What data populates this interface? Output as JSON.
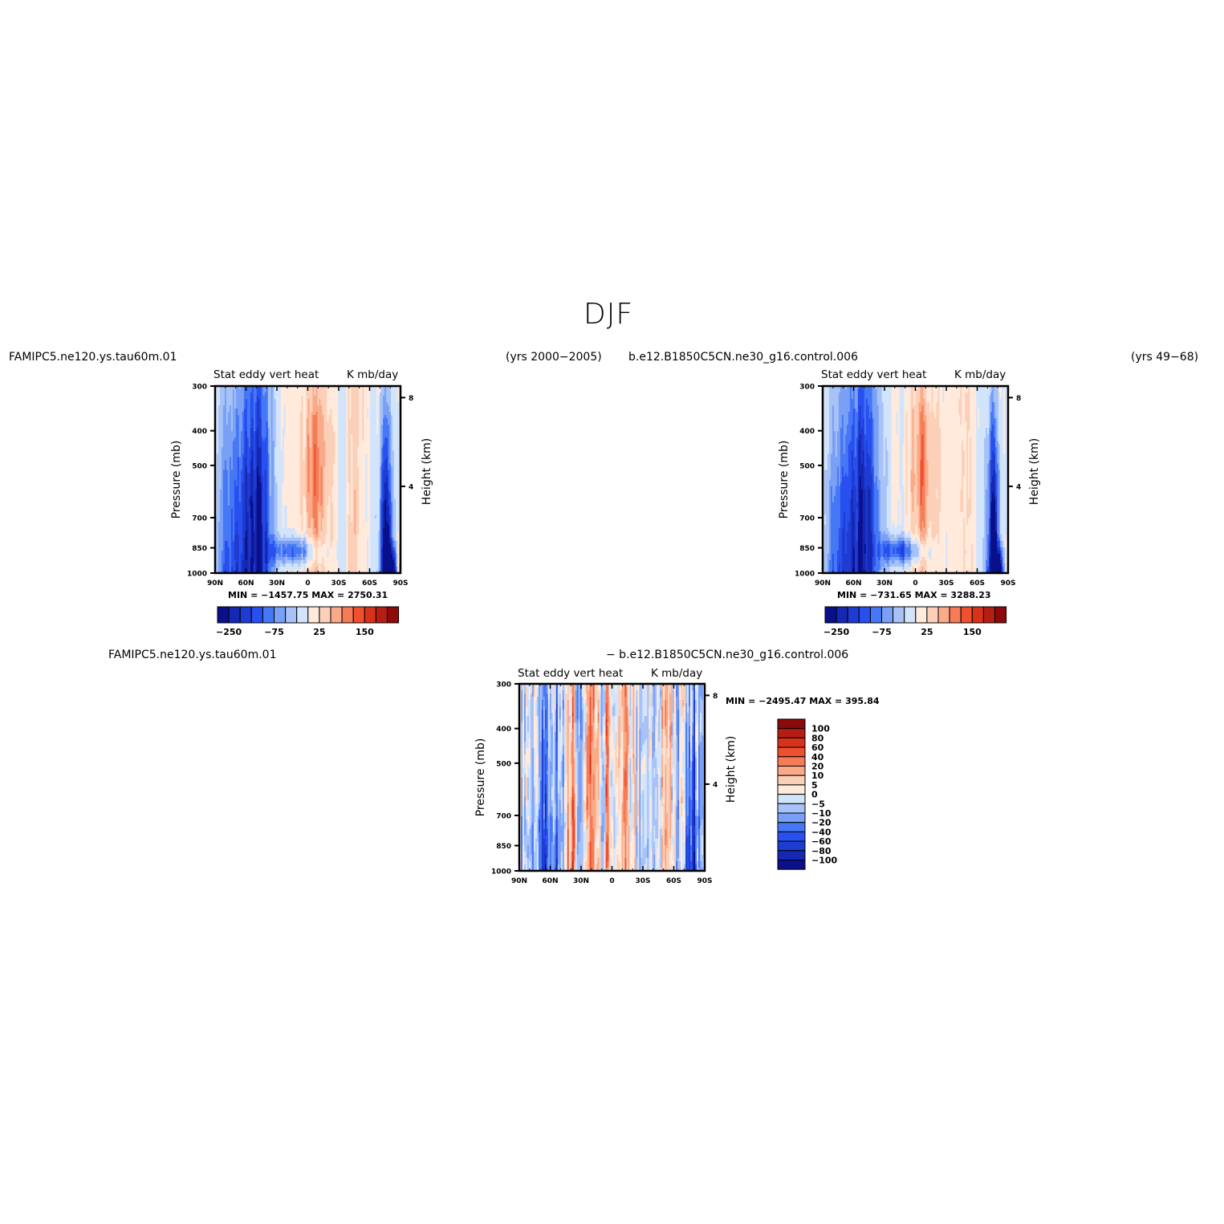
{
  "figure": {
    "title": "DJF",
    "top_left": {
      "case": "FAMIPC5.ne120.ys.tau60m.01",
      "years": "(yrs 2000−2005)"
    },
    "top_right": {
      "case": "b.e12.B1850C5CN.ne30_g16.control.006",
      "years": "(yrs 49−68)"
    },
    "bottom": {
      "case_a": "FAMIPC5.ne120.ys.tau60m.01",
      "case_b": "− b.e12.B1850C5CN.ne30_g16.control.006"
    }
  },
  "chart_data": [
    {
      "type": "heatmap",
      "panel": "top-left",
      "title_left": "Stat eddy vert heat",
      "title_right": "K mb/day",
      "ylabel": "Pressure (mb)",
      "ylabel_right": "Height (km)",
      "x_ticks": [
        "90N",
        "60N",
        "30N",
        "0",
        "30S",
        "60S",
        "90S"
      ],
      "y_ticks": [
        "300",
        "400",
        "500",
        "700",
        "850",
        "1000"
      ],
      "y_ticks_right": [
        "8",
        "4"
      ],
      "ylim": [
        1000,
        300
      ],
      "stats": "MIN = −1457.75   MAX = 2750.31",
      "colorbar_labels": [
        "−250",
        "−75",
        "25",
        "150"
      ]
    },
    {
      "type": "heatmap",
      "panel": "top-right",
      "title_left": "Stat eddy vert heat",
      "title_right": "K mb/day",
      "ylabel": "Pressure (mb)",
      "ylabel_right": "Height (km)",
      "x_ticks": [
        "90N",
        "60N",
        "30N",
        "0",
        "30S",
        "60S",
        "90S"
      ],
      "y_ticks": [
        "300",
        "400",
        "500",
        "700",
        "850",
        "1000"
      ],
      "y_ticks_right": [
        "8",
        "4"
      ],
      "ylim": [
        1000,
        300
      ],
      "stats": "MIN = −731.65   MAX = 3288.23",
      "colorbar_labels": [
        "−250",
        "−75",
        "25",
        "150"
      ]
    },
    {
      "type": "heatmap",
      "panel": "bottom-difference",
      "title_left": "Stat eddy vert heat",
      "title_right": "K mb/day",
      "ylabel": "Pressure (mb)",
      "ylabel_right": "Height (km)",
      "x_ticks": [
        "90N",
        "60N",
        "30N",
        "0",
        "30S",
        "60S",
        "90S"
      ],
      "y_ticks": [
        "300",
        "400",
        "500",
        "700",
        "850",
        "1000"
      ],
      "y_ticks_right": [
        "8",
        "4"
      ],
      "ylim": [
        1000,
        300
      ],
      "stats": "MIN = −2495.47   MAX = 395.84",
      "colorbar_labels": [
        "100",
        "80",
        "60",
        "40",
        "20",
        "10",
        "5",
        "0",
        "−5",
        "−10",
        "−20",
        "−40",
        "−60",
        "−80",
        "−100"
      ]
    }
  ],
  "palette": [
    "#0a0f8a",
    "#1428b4",
    "#1e3cd2",
    "#2850f0",
    "#4678f5",
    "#7aa0f5",
    "#a6c2f7",
    "#d2e4fc",
    "#ffeadc",
    "#fcd0b8",
    "#f9aa88",
    "#f67c58",
    "#f0502e",
    "#d8321a",
    "#b41e14",
    "#8c0a0a"
  ]
}
